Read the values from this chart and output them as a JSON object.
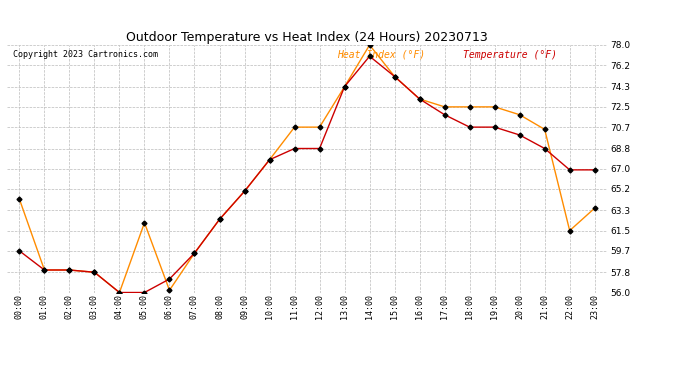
{
  "title": "Outdoor Temperature vs Heat Index (24 Hours) 20230713",
  "copyright": "Copyright 2023 Cartronics.com",
  "legend_heat": "Heat Index (°F)",
  "legend_temp": "Temperature (°F)",
  "hours": [
    "00:00",
    "01:00",
    "02:00",
    "03:00",
    "04:00",
    "05:00",
    "06:00",
    "07:00",
    "08:00",
    "09:00",
    "10:00",
    "11:00",
    "12:00",
    "13:00",
    "14:00",
    "15:00",
    "16:00",
    "17:00",
    "18:00",
    "19:00",
    "20:00",
    "21:00",
    "22:00",
    "23:00"
  ],
  "temperature": [
    59.7,
    58.0,
    58.0,
    57.8,
    56.0,
    56.0,
    57.2,
    59.5,
    62.5,
    65.0,
    67.8,
    68.8,
    68.8,
    74.3,
    77.0,
    75.2,
    73.2,
    71.8,
    70.7,
    70.7,
    70.0,
    68.8,
    66.9,
    66.9
  ],
  "heat_index": [
    64.3,
    58.0,
    58.0,
    57.8,
    56.0,
    62.2,
    56.2,
    59.5,
    62.5,
    65.0,
    67.8,
    70.7,
    70.7,
    74.3,
    78.0,
    75.2,
    73.2,
    72.5,
    72.5,
    72.5,
    71.8,
    70.5,
    61.5,
    63.5
  ],
  "ylim_min": 56.0,
  "ylim_max": 78.0,
  "yticks": [
    56.0,
    57.8,
    59.7,
    61.5,
    63.3,
    65.2,
    67.0,
    68.8,
    70.7,
    72.5,
    74.3,
    76.2,
    78.0
  ],
  "temp_color": "#cc0000",
  "heat_color": "#ff8c00",
  "marker_color": "#000000",
  "bg_color": "#ffffff",
  "grid_color": "#bbbbbb",
  "title_color": "#000000",
  "copyright_color": "#000000",
  "legend_color_heat": "#ff8c00",
  "legend_color_temp": "#cc0000",
  "fig_width": 6.9,
  "fig_height": 3.75,
  "dpi": 100
}
